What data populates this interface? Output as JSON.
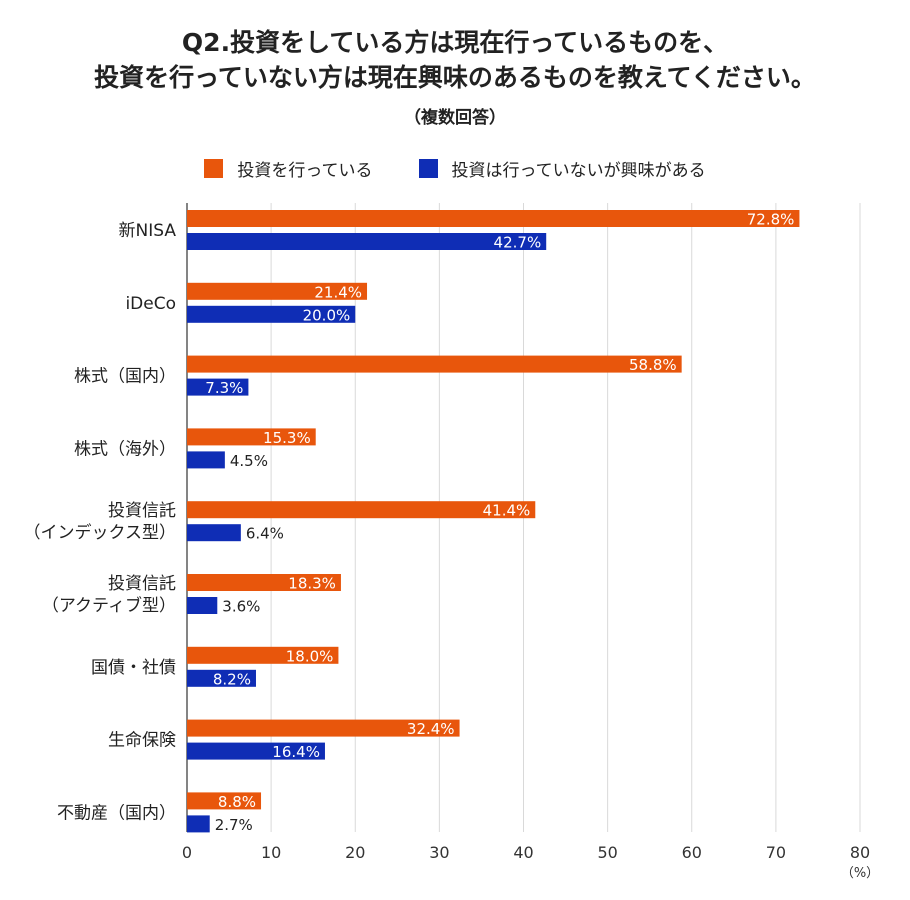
{
  "chart_data": {
    "type": "bar",
    "orientation": "horizontal",
    "title_line1": "Q2.投資をしている方は現在行っているものを、",
    "title_line2": "投資を行っていない方は現在興味のあるものを教えてください。",
    "subtitle": "（複数回答）",
    "categories": [
      [
        "新NISA"
      ],
      [
        "iDeCo"
      ],
      [
        "株式（国内）"
      ],
      [
        "株式（海外）"
      ],
      [
        "投資信託",
        "（インデックス型）"
      ],
      [
        "投資信託",
        "（アクティブ型）"
      ],
      [
        "国債・社債"
      ],
      [
        "生命保険"
      ],
      [
        "不動産（国内）"
      ]
    ],
    "series": [
      {
        "name": "投資を行っている",
        "color": "#e8560c",
        "values": [
          72.8,
          21.4,
          58.8,
          15.3,
          41.4,
          18.3,
          18.0,
          32.4,
          8.8
        ],
        "labels": [
          "72.8%",
          "21.4%",
          "58.8%",
          "15.3%",
          "41.4%",
          "18.3%",
          "18.0%",
          "32.4%",
          "8.8%"
        ]
      },
      {
        "name": "投資は行っていないが興味がある",
        "color": "#0f2db5",
        "values": [
          42.7,
          20.0,
          7.3,
          4.5,
          6.4,
          3.6,
          8.2,
          16.4,
          2.7
        ],
        "labels": [
          "42.7%",
          "20.0%",
          "7.3%",
          "4.5%",
          "6.4%",
          "3.6%",
          "8.2%",
          "16.4%",
          "2.7%"
        ]
      }
    ],
    "xlim": [
      0,
      80
    ],
    "xticks": [
      "0",
      "10",
      "20",
      "30",
      "40",
      "50",
      "60",
      "70",
      "80"
    ],
    "xunit": "（%）",
    "grid": true,
    "legend_position": "top-center"
  }
}
